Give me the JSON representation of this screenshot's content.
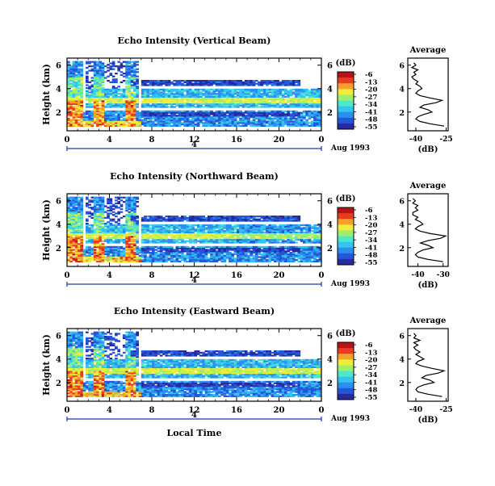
{
  "colors": {
    "background": "#ffffff",
    "axis": "#000000",
    "date_bar": "#1a3aa8",
    "colormap": [
      "#262a9e",
      "#2456d8",
      "#2b8ff0",
      "#35c4f0",
      "#4fe8c8",
      "#9ef06a",
      "#f0ec3a",
      "#f5a02a",
      "#e83c22",
      "#b81418"
    ]
  },
  "chart_data": [
    {
      "type": "heatmap",
      "title": "Echo Intensity (Vertical Beam)",
      "ylabel": "Height (km)",
      "xlabel": "",
      "x_ticks": [
        "0",
        "4",
        "8",
        "12",
        "16",
        "20",
        "0"
      ],
      "y_ticks": [
        "2",
        "4",
        "6"
      ],
      "right_axis_ticks": [
        "2",
        "4",
        "6"
      ],
      "x_range_hours": [
        0,
        24
      ],
      "y_range_km": [
        0.4,
        6.6
      ],
      "date_marker": "4",
      "date_label": "Aug 1993",
      "colorbar": {
        "unit": "(dB)",
        "ticks": [
          "-6",
          "-13",
          "-20",
          "-27",
          "-34",
          "-41",
          "-48",
          "-55"
        ],
        "range_db": [
          -55,
          -6
        ]
      },
      "average_profile": {
        "title": "Average",
        "xlabel": "(dB)",
        "x_ticks": [
          "-40",
          "-25"
        ],
        "y_ticks": [
          "2",
          "4",
          "6"
        ],
        "x_range_db": [
          -44,
          -24
        ],
        "height_km": [
          0.8,
          1.0,
          1.2,
          1.4,
          1.6,
          1.8,
          2.0,
          2.2,
          2.4,
          2.6,
          2.8,
          3.0,
          3.2,
          3.4,
          3.6,
          3.8,
          4.0,
          4.2,
          4.4,
          4.6,
          4.8,
          5.0,
          5.2,
          5.4,
          5.6,
          5.8,
          6.0,
          6.2
        ],
        "echo_db": [
          -26,
          -33,
          -38,
          -40,
          -39,
          -36,
          -32,
          -34,
          -38,
          -36,
          -30,
          -27,
          -33,
          -38,
          -40,
          -39,
          -37,
          -38,
          -40,
          -39,
          -41,
          -42,
          -40,
          -41,
          -39,
          -42,
          -40,
          -41
        ]
      }
    },
    {
      "type": "heatmap",
      "title": "Echo Intensity (Northward Beam)",
      "ylabel": "Height (km)",
      "xlabel": "",
      "x_ticks": [
        "0",
        "4",
        "8",
        "12",
        "16",
        "20",
        "0"
      ],
      "y_ticks": [
        "2",
        "4",
        "6"
      ],
      "right_axis_ticks": [
        "2",
        "4",
        "6"
      ],
      "x_range_hours": [
        0,
        24
      ],
      "y_range_km": [
        0.4,
        6.6
      ],
      "date_marker": "4",
      "date_label": "Aug 1993",
      "colorbar": {
        "unit": "(dB)",
        "ticks": [
          "-6",
          "-13",
          "-20",
          "-27",
          "-34",
          "-41",
          "-48",
          "-55"
        ],
        "range_db": [
          -55,
          -6
        ]
      },
      "average_profile": {
        "title": "Average",
        "xlabel": "(dB)",
        "x_ticks": [
          "-40",
          "-30"
        ],
        "y_ticks": [
          "2",
          "4",
          "6"
        ],
        "x_range_db": [
          -44,
          -28
        ],
        "height_km": [
          0.8,
          1.0,
          1.2,
          1.4,
          1.6,
          1.8,
          2.0,
          2.2,
          2.4,
          2.6,
          2.8,
          3.0,
          3.2,
          3.4,
          3.6,
          3.8,
          4.0,
          4.2,
          4.4,
          4.6,
          4.8,
          5.0,
          5.2,
          5.4,
          5.6,
          5.8,
          6.0,
          6.2
        ],
        "echo_db": [
          -30,
          -36,
          -40,
          -41,
          -40,
          -38,
          -34,
          -36,
          -39,
          -36,
          -31,
          -29,
          -35,
          -39,
          -41,
          -40,
          -38,
          -39,
          -41,
          -40,
          -42,
          -42,
          -40,
          -41,
          -40,
          -42,
          -41,
          -42
        ]
      }
    },
    {
      "type": "heatmap",
      "title": "Echo Intensity (Eastward Beam)",
      "ylabel": "Height (km)",
      "xlabel": "Local Time",
      "x_ticks": [
        "0",
        "4",
        "8",
        "12",
        "16",
        "20",
        "0"
      ],
      "y_ticks": [
        "2",
        "4",
        "6"
      ],
      "right_axis_ticks": [
        "2",
        "4",
        "6"
      ],
      "x_range_hours": [
        0,
        24
      ],
      "y_range_km": [
        0.4,
        6.6
      ],
      "date_marker": "4",
      "date_label": "Aug 1993",
      "colorbar": {
        "unit": "(dB)",
        "ticks": [
          "-6",
          "-13",
          "-20",
          "-27",
          "-34",
          "-41",
          "-48",
          "-55"
        ],
        "range_db": [
          -55,
          -6
        ]
      },
      "average_profile": {
        "title": "Average",
        "xlabel": "(dB)",
        "x_ticks": [
          "-40",
          "-25"
        ],
        "y_ticks": [
          "2",
          "4",
          "6"
        ],
        "x_range_db": [
          -44,
          -24
        ],
        "height_km": [
          0.8,
          1.0,
          1.2,
          1.4,
          1.6,
          1.8,
          2.0,
          2.2,
          2.4,
          2.6,
          2.8,
          3.0,
          3.2,
          3.4,
          3.6,
          3.8,
          4.0,
          4.2,
          4.4,
          4.6,
          4.8,
          5.0,
          5.2,
          5.4,
          5.6,
          5.8,
          6.0,
          6.2
        ],
        "echo_db": [
          -27,
          -34,
          -39,
          -40,
          -39,
          -36,
          -31,
          -33,
          -37,
          -35,
          -29,
          -26,
          -32,
          -37,
          -40,
          -39,
          -36,
          -38,
          -40,
          -38,
          -40,
          -41,
          -39,
          -41,
          -38,
          -41,
          -40,
          -41
        ]
      }
    }
  ]
}
